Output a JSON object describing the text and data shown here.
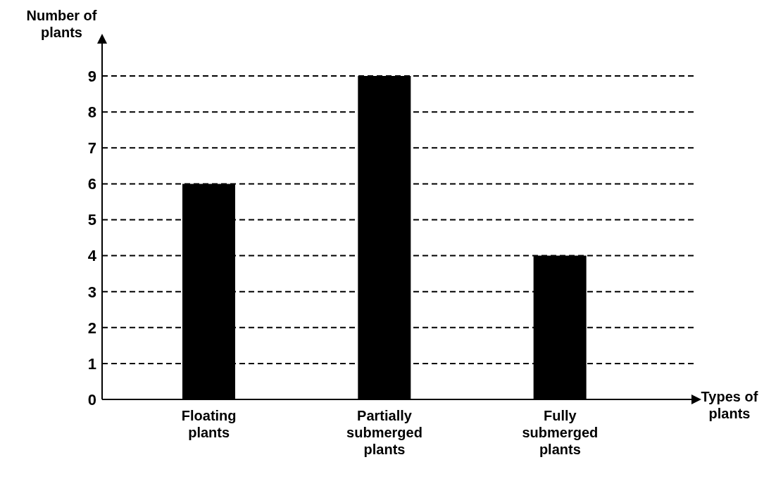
{
  "chart_data": {
    "type": "bar",
    "xlabel": "Types of plants",
    "ylabel": "Number of plants",
    "categories": [
      "Floating plants",
      "Partially submerged plants",
      "Fully submerged plants"
    ],
    "values": [
      6,
      9,
      4
    ],
    "color": "#000000",
    "ylim": [
      0,
      10
    ],
    "yticks": [
      0,
      1,
      2,
      3,
      4,
      5,
      6,
      7,
      8,
      9
    ],
    "grid": "y"
  }
}
